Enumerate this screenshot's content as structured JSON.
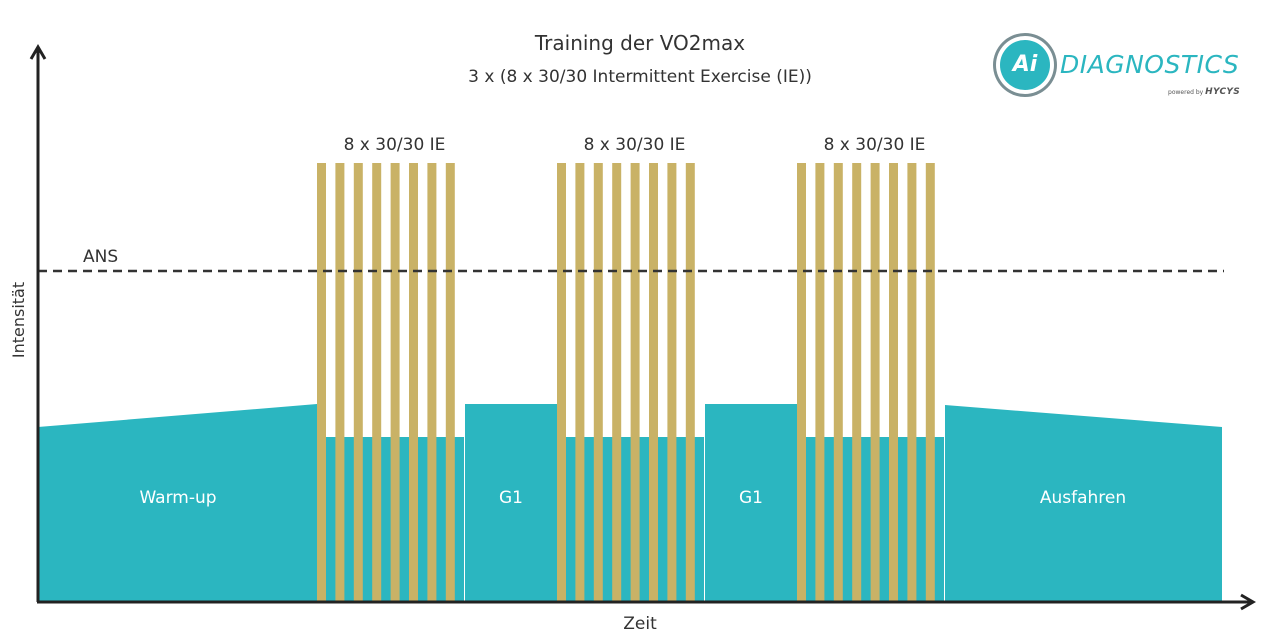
{
  "diagram": {
    "title": "Training der VO2max",
    "subtitle": "3 x (8 x 30/30 Intermittent Exercise (IE))",
    "x_axis_label": "Zeit",
    "y_axis_label": "Intensität",
    "threshold_label": "ANS",
    "phases": [
      {
        "label": "Warm-up"
      },
      {
        "label": "8 x 30/30 IE",
        "intervals": 8
      },
      {
        "label": "G1"
      },
      {
        "label": "8 x 30/30 IE",
        "intervals": 8
      },
      {
        "label": "G1"
      },
      {
        "label": "8 x 30/30 IE",
        "intervals": 8
      },
      {
        "label": "Ausfahren"
      }
    ],
    "colors": {
      "recovery": "#2bb6c0",
      "interval": "#c9b266",
      "threshold": "#333333",
      "axis": "#222222",
      "text": "#333333",
      "text_on_fill": "#ffffff"
    }
  },
  "logo": {
    "mark": "Ai",
    "name": "DIAGNOSTICS",
    "powered_by": "powered by",
    "parent": "HYCYS"
  }
}
